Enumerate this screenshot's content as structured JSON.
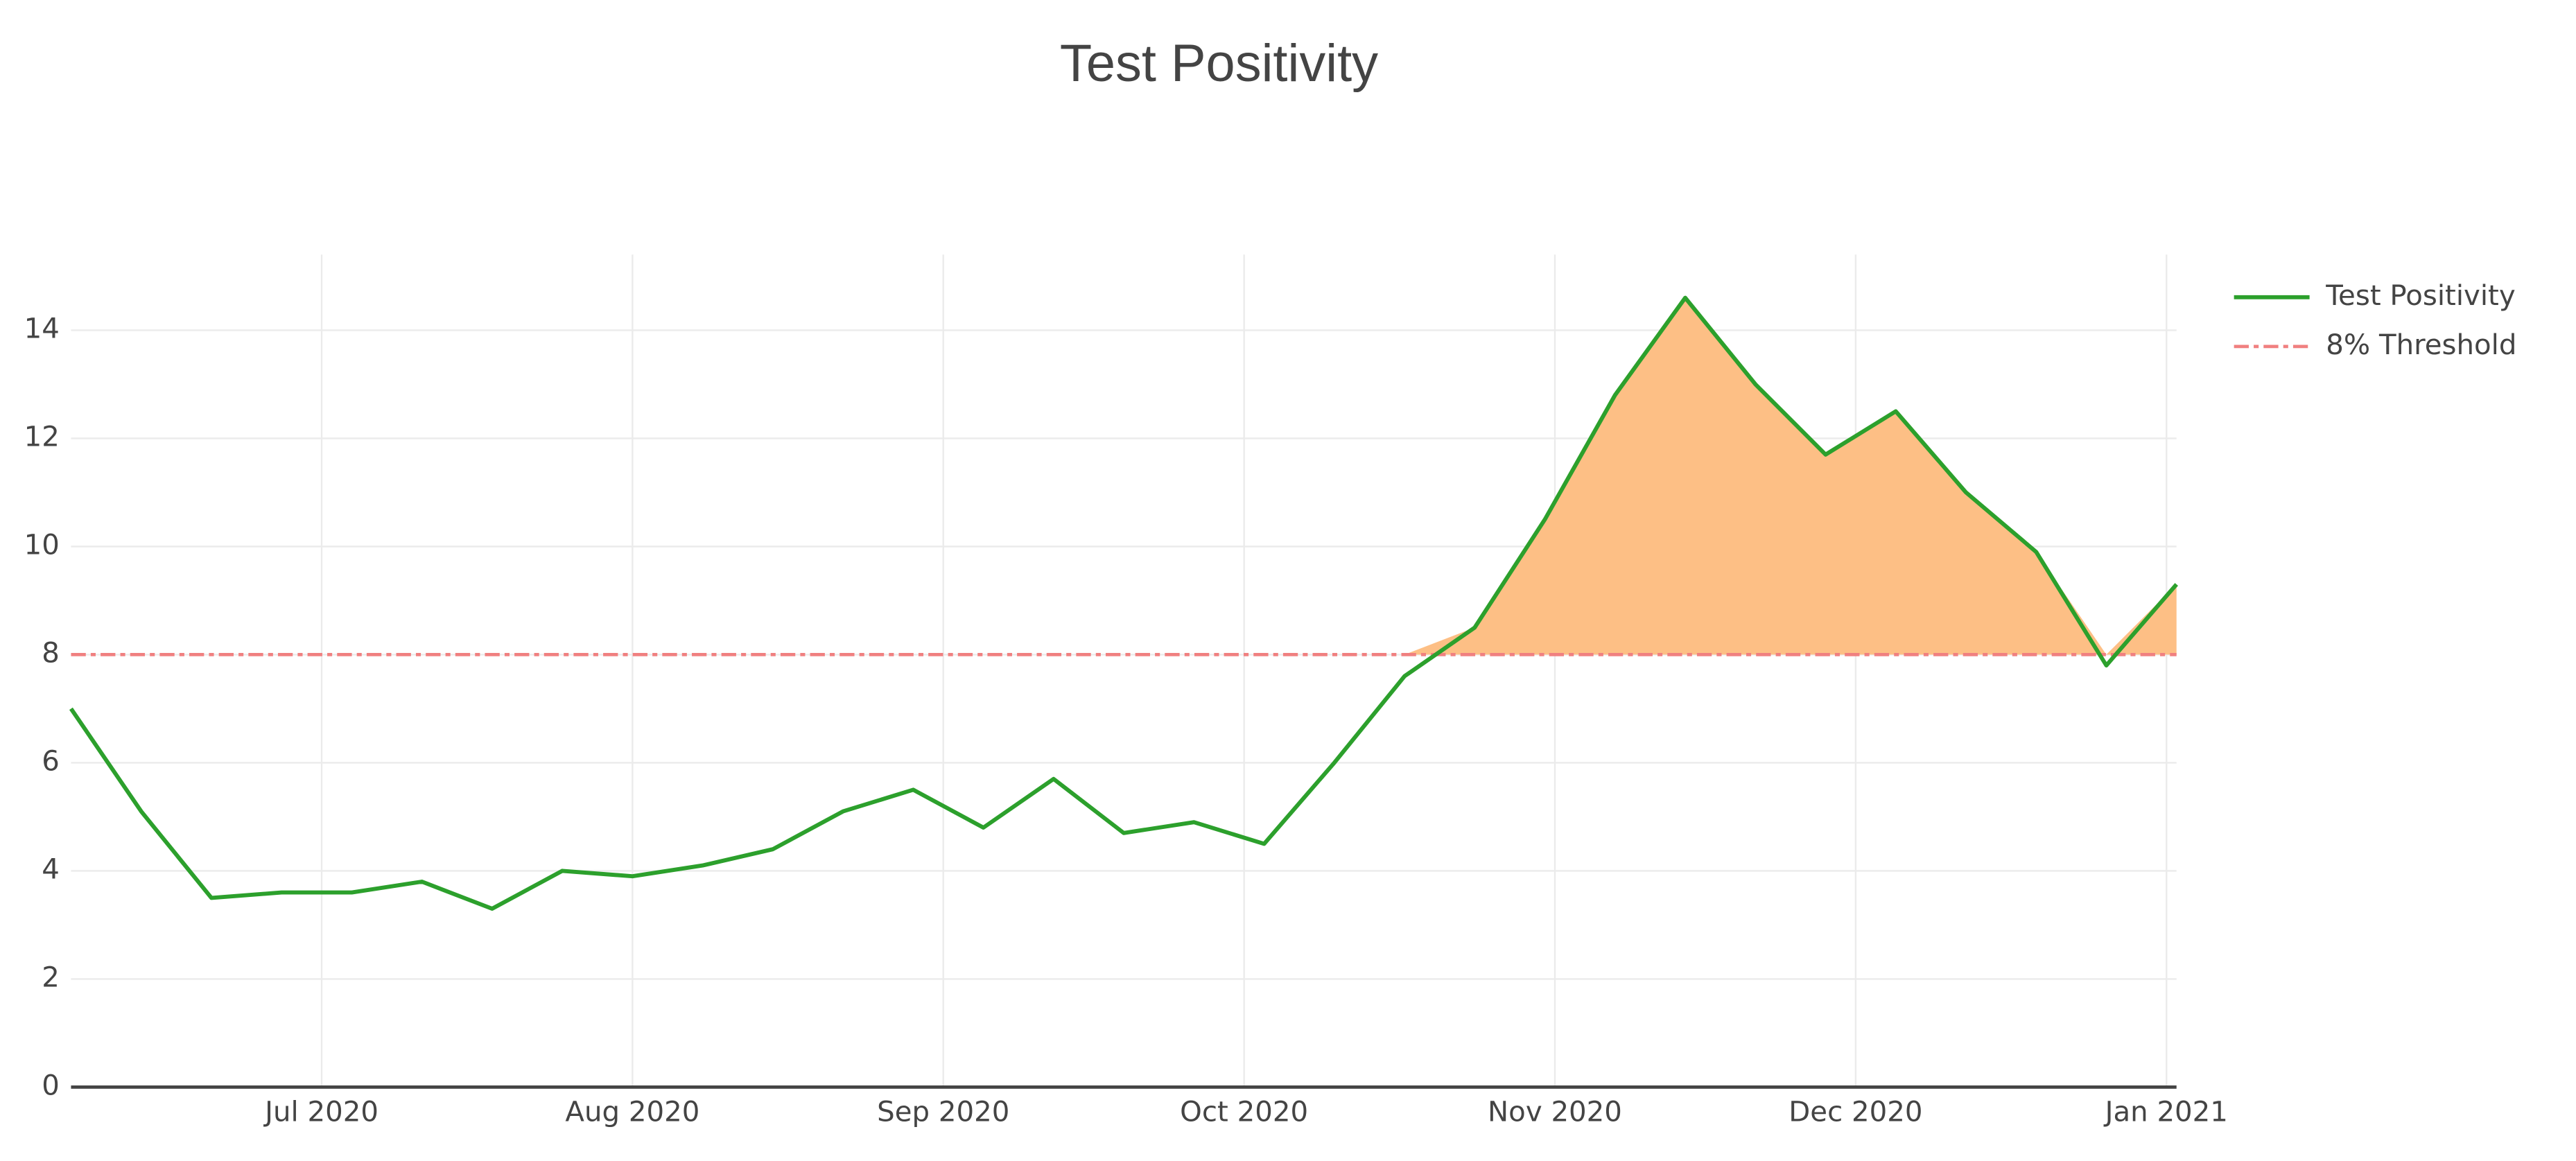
{
  "chart_data": {
    "type": "line",
    "title": "Test Positivity",
    "x": [
      "2020-06-06",
      "2020-06-13",
      "2020-06-20",
      "2020-06-27",
      "2020-07-04",
      "2020-07-11",
      "2020-07-18",
      "2020-07-25",
      "2020-08-01",
      "2020-08-08",
      "2020-08-15",
      "2020-08-22",
      "2020-08-29",
      "2020-09-05",
      "2020-09-12",
      "2020-09-19",
      "2020-09-26",
      "2020-10-03",
      "2020-10-10",
      "2020-10-17",
      "2020-10-24",
      "2020-10-31",
      "2020-11-07",
      "2020-11-14",
      "2020-11-21",
      "2020-11-28",
      "2020-12-05",
      "2020-12-12",
      "2020-12-19",
      "2020-12-26",
      "2021-01-02"
    ],
    "series": [
      {
        "name": "Test Positivity",
        "color": "#2ca02c",
        "values": [
          7.0,
          5.1,
          3.5,
          3.6,
          3.6,
          3.8,
          3.3,
          4.0,
          3.9,
          4.1,
          4.4,
          5.1,
          5.5,
          4.8,
          5.7,
          4.7,
          4.9,
          4.5,
          6.0,
          7.6,
          8.5,
          10.5,
          12.8,
          14.6,
          13.0,
          11.7,
          12.5,
          11.0,
          9.9,
          7.8,
          9.3
        ]
      }
    ],
    "threshold": {
      "name": "8% Threshold",
      "value": 8,
      "color": "#f08080"
    },
    "fill_color": "#fdbf85",
    "xlim": [
      "2020-06-06",
      "2021-01-02"
    ],
    "xticks": [
      {
        "value": "2020-07-01",
        "label": "Jul 2020"
      },
      {
        "value": "2020-08-01",
        "label": "Aug 2020"
      },
      {
        "value": "2020-09-01",
        "label": "Sep 2020"
      },
      {
        "value": "2020-10-01",
        "label": "Oct 2020"
      },
      {
        "value": "2020-11-01",
        "label": "Nov 2020"
      },
      {
        "value": "2020-12-01",
        "label": "Dec 2020"
      },
      {
        "value": "2021-01-01",
        "label": "Jan 2021"
      }
    ],
    "ylim": [
      0,
      15.4
    ],
    "yticks": [
      0,
      2,
      4,
      6,
      8,
      10,
      12,
      14
    ],
    "grid": true,
    "legend": "right"
  }
}
